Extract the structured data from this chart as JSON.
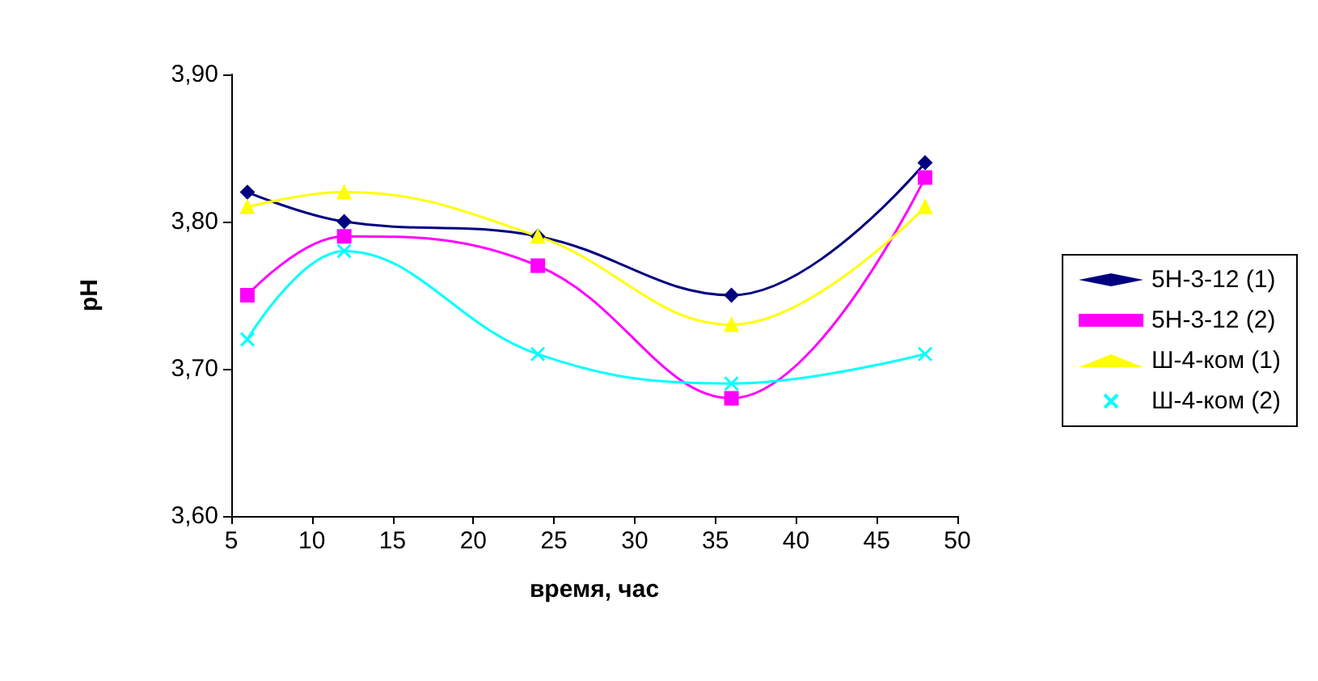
{
  "chart_data": {
    "type": "line",
    "xlabel": "время, час",
    "ylabel": "pH",
    "x": [
      6,
      12,
      24,
      36,
      48
    ],
    "series": [
      {
        "name": "5Н-3-12 (1)",
        "color": "#000080",
        "marker": "diamond",
        "values": [
          3.82,
          3.8,
          3.79,
          3.75,
          3.84
        ]
      },
      {
        "name": "5Н-3-12 (2)",
        "color": "#ff00ff",
        "marker": "square",
        "values": [
          3.75,
          3.79,
          3.77,
          3.68,
          3.83
        ]
      },
      {
        "name": "Ш-4-ком (1)",
        "color": "#ffff00",
        "marker": "triangle",
        "values": [
          3.81,
          3.82,
          3.79,
          3.73,
          3.81
        ]
      },
      {
        "name": "Ш-4-ком (2)",
        "color": "#00ffff",
        "marker": "cross",
        "values": [
          3.72,
          3.78,
          3.71,
          3.69,
          3.71
        ]
      }
    ],
    "xlim": [
      5,
      50
    ],
    "xticks": [
      5,
      10,
      15,
      20,
      25,
      30,
      35,
      40,
      45,
      50
    ],
    "ylim": [
      3.6,
      3.9
    ],
    "yticks": [
      {
        "value": 3.6,
        "label": "3,60"
      },
      {
        "value": 3.7,
        "label": "3,70"
      },
      {
        "value": 3.8,
        "label": "3,80"
      },
      {
        "value": 3.9,
        "label": "3,90"
      }
    ],
    "grid": false,
    "legend": "right",
    "line_style": "solid"
  }
}
